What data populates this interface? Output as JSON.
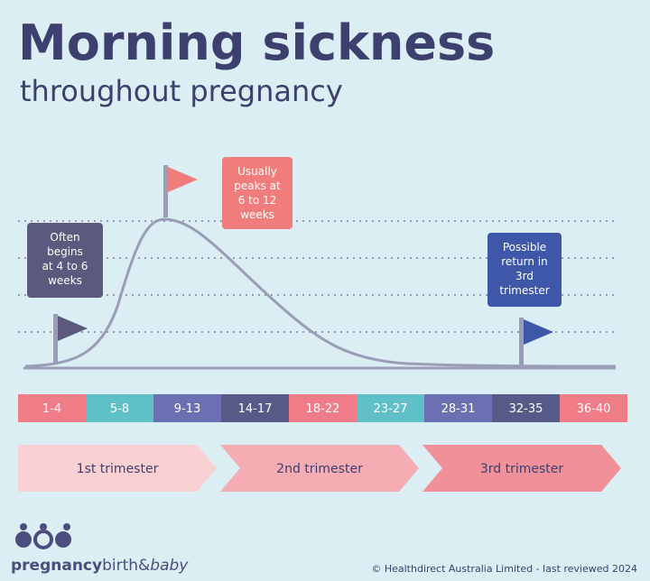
{
  "header": {
    "title": "Morning sickness",
    "subtitle": "throughout pregnancy"
  },
  "callouts": [
    {
      "lines": [
        "Often",
        "begins",
        "at 4 to 6",
        "weeks"
      ],
      "color": "#5b5a7e"
    },
    {
      "lines": [
        "Usually",
        "peaks at",
        "6 to 12",
        "weeks"
      ],
      "color": "#f07c7c"
    },
    {
      "lines": [
        "Possible",
        "return in",
        "3rd",
        "trimester"
      ],
      "color": "#3f57a8"
    }
  ],
  "weeks": [
    {
      "label": "1-4",
      "color": "#ef7c86"
    },
    {
      "label": "5-8",
      "color": "#5fc0c7"
    },
    {
      "label": "9-13",
      "color": "#6b70b2"
    },
    {
      "label": "14-17",
      "color": "#575a86"
    },
    {
      "label": "18-22",
      "color": "#ef7c86"
    },
    {
      "label": "23-27",
      "color": "#5fc0c7"
    },
    {
      "label": "28-31",
      "color": "#6b70b2"
    },
    {
      "label": "32-35",
      "color": "#575a86"
    },
    {
      "label": "36-40",
      "color": "#ef7c86"
    }
  ],
  "trimesters": [
    {
      "label": "1st trimester",
      "color": "#fad1d3"
    },
    {
      "label": "2nd trimester",
      "color": "#f5acb2"
    },
    {
      "label": "3rd trimester",
      "color": "#f19098"
    }
  ],
  "logo": {
    "bold": "pregnancy",
    "regular": "birth&",
    "italic": "baby"
  },
  "footer": "© Healthdirect Australia Limited - last reviewed 2024"
}
